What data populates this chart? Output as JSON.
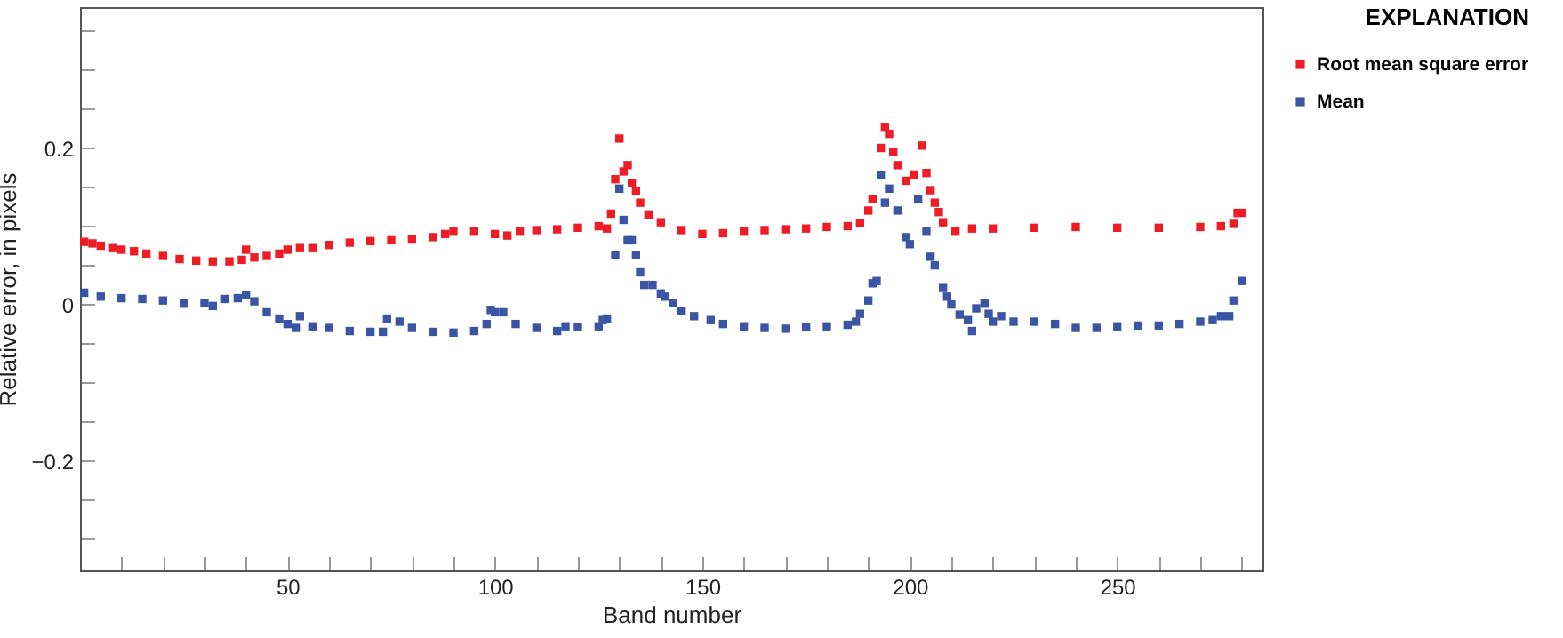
{
  "chart_data": {
    "type": "scatter",
    "xlabel": "Band number",
    "ylabel": "Relative error, in pixels",
    "legend_title": "EXPLANATION",
    "legend": "right",
    "marker": "square",
    "grid": false,
    "xlim": [
      0,
      285
    ],
    "ylim": [
      -0.34,
      0.38
    ],
    "xticks": [
      {
        "value": 0,
        "label": null
      },
      {
        "value": 10,
        "label": null
      },
      {
        "value": 20,
        "label": null
      },
      {
        "value": 30,
        "label": null
      },
      {
        "value": 40,
        "label": null
      },
      50,
      {
        "value": 60,
        "label": null
      },
      {
        "value": 70,
        "label": null
      },
      {
        "value": 80,
        "label": null
      },
      {
        "value": 90,
        "label": null
      },
      100,
      {
        "value": 110,
        "label": null
      },
      {
        "value": 120,
        "label": null
      },
      {
        "value": 130,
        "label": null
      },
      {
        "value": 140,
        "label": null
      },
      150,
      {
        "value": 160,
        "label": null
      },
      {
        "value": 170,
        "label": null
      },
      {
        "value": 180,
        "label": null
      },
      {
        "value": 190,
        "label": null
      },
      200,
      {
        "value": 210,
        "label": null
      },
      {
        "value": 220,
        "label": null
      },
      {
        "value": 230,
        "label": null
      },
      {
        "value": 240,
        "label": null
      },
      250,
      {
        "value": 260,
        "label": null
      },
      {
        "value": 270,
        "label": null
      },
      {
        "value": 280,
        "label": null
      }
    ],
    "yticks": [
      {
        "value": -0.3,
        "label": null
      },
      {
        "value": -0.25,
        "label": null
      },
      {
        "value": -0.2,
        "label": "−0.2"
      },
      {
        "value": -0.15,
        "label": null
      },
      {
        "value": -0.1,
        "label": null
      },
      {
        "value": -0.05,
        "label": null
      },
      0,
      {
        "value": 0.05,
        "label": null
      },
      {
        "value": 0.1,
        "label": null
      },
      {
        "value": 0.15,
        "label": null
      },
      0.2,
      {
        "value": 0.25,
        "label": null
      },
      {
        "value": 0.3,
        "label": null
      },
      {
        "value": 0.35,
        "label": null
      }
    ],
    "series": [
      {
        "name": "Root mean square error",
        "color": "#ee1c25",
        "x": [
          1,
          3,
          5,
          8,
          10,
          13,
          16,
          20,
          24,
          28,
          32,
          36,
          39,
          40,
          42,
          45,
          48,
          50,
          53,
          56,
          60,
          65,
          70,
          75,
          80,
          85,
          88,
          90,
          95,
          100,
          103,
          106,
          110,
          115,
          120,
          125,
          127,
          128,
          129,
          130,
          131,
          132,
          133,
          134,
          135,
          137,
          140,
          145,
          150,
          155,
          160,
          165,
          170,
          175,
          180,
          185,
          188,
          190,
          191,
          193,
          194,
          195,
          196,
          197,
          199,
          201,
          203,
          204,
          205,
          206,
          207,
          208,
          211,
          215,
          220,
          230,
          240,
          250,
          260,
          270,
          275,
          278,
          279,
          280
        ],
        "values": [
          0.08,
          0.078,
          0.075,
          0.072,
          0.07,
          0.068,
          0.065,
          0.062,
          0.058,
          0.056,
          0.055,
          0.055,
          0.057,
          0.07,
          0.06,
          0.062,
          0.065,
          0.07,
          0.072,
          0.072,
          0.076,
          0.079,
          0.081,
          0.082,
          0.083,
          0.086,
          0.09,
          0.093,
          0.093,
          0.09,
          0.088,
          0.093,
          0.095,
          0.096,
          0.098,
          0.1,
          0.097,
          0.116,
          0.16,
          0.212,
          0.17,
          0.178,
          0.155,
          0.145,
          0.13,
          0.115,
          0.105,
          0.095,
          0.09,
          0.091,
          0.093,
          0.095,
          0.096,
          0.097,
          0.099,
          0.1,
          0.104,
          0.12,
          0.135,
          0.2,
          0.227,
          0.218,
          0.195,
          0.178,
          0.158,
          0.166,
          0.203,
          0.168,
          0.146,
          0.13,
          0.118,
          0.105,
          0.093,
          0.097,
          0.097,
          0.098,
          0.099,
          0.098,
          0.098,
          0.099,
          0.1,
          0.103,
          0.117,
          0.117
        ]
      },
      {
        "name": "Mean",
        "color": "#3a55a4",
        "x": [
          1,
          5,
          10,
          15,
          20,
          25,
          30,
          32,
          35,
          38,
          40,
          42,
          45,
          48,
          50,
          52,
          53,
          56,
          60,
          65,
          70,
          73,
          74,
          77,
          80,
          85,
          90,
          95,
          98,
          99,
          100,
          102,
          105,
          110,
          115,
          117,
          120,
          125,
          126,
          127,
          129,
          130,
          131,
          132,
          133,
          134,
          135,
          136,
          138,
          140,
          141,
          143,
          145,
          148,
          152,
          155,
          160,
          165,
          170,
          175,
          180,
          185,
          187,
          188,
          190,
          191,
          192,
          193,
          194,
          195,
          197,
          199,
          200,
          202,
          204,
          205,
          206,
          208,
          209,
          210,
          212,
          214,
          215,
          216,
          218,
          219,
          220,
          222,
          225,
          230,
          235,
          240,
          245,
          250,
          255,
          260,
          265,
          270,
          273,
          275,
          277,
          278,
          280
        ],
        "values": [
          0.015,
          0.01,
          0.008,
          0.007,
          0.005,
          0.001,
          0.002,
          -0.002,
          0.007,
          0.008,
          0.012,
          0.004,
          -0.01,
          -0.018,
          -0.025,
          -0.03,
          -0.015,
          -0.028,
          -0.03,
          -0.034,
          -0.035,
          -0.035,
          -0.018,
          -0.022,
          -0.03,
          -0.035,
          -0.036,
          -0.034,
          -0.025,
          -0.007,
          -0.01,
          -0.01,
          -0.025,
          -0.03,
          -0.034,
          -0.028,
          -0.029,
          -0.028,
          -0.02,
          -0.018,
          0.063,
          0.148,
          0.108,
          0.082,
          0.082,
          0.063,
          0.041,
          0.025,
          0.025,
          0.014,
          0.01,
          0.002,
          -0.008,
          -0.015,
          -0.02,
          -0.025,
          -0.028,
          -0.03,
          -0.031,
          -0.029,
          -0.028,
          -0.026,
          -0.022,
          -0.012,
          0.005,
          0.027,
          0.03,
          0.165,
          0.13,
          0.148,
          0.12,
          0.086,
          0.077,
          0.135,
          0.093,
          0.061,
          0.05,
          0.021,
          0.01,
          0.0,
          -0.013,
          -0.02,
          -0.034,
          -0.005,
          0.001,
          -0.012,
          -0.022,
          -0.015,
          -0.022,
          -0.022,
          -0.025,
          -0.03,
          -0.03,
          -0.028,
          -0.027,
          -0.027,
          -0.025,
          -0.022,
          -0.02,
          -0.015,
          -0.015,
          0.005,
          0.03
        ]
      }
    ]
  }
}
